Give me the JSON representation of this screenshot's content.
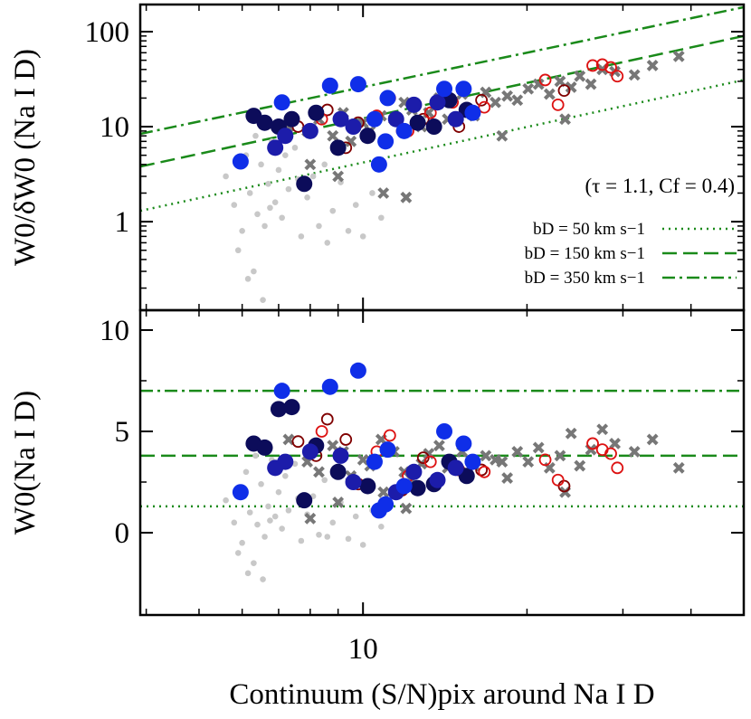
{
  "chart_data": [
    {
      "type": "scatter",
      "ylabel": "W0/δW0 (Na I D)",
      "annotation": "(τ = 1.1, Cf = 0.4)",
      "xscale": "log",
      "yscale": "log",
      "xlim": [
        3.9,
        50
      ],
      "ylim": [
        0.117,
        193
      ],
      "xticks": [
        10
      ],
      "yticks": [
        1,
        10,
        100
      ],
      "legend": "lower right",
      "series": [
        {
          "kind": "line",
          "name": "bD = 50 km s−1",
          "dash": "dotted",
          "color": "#1a8a1a",
          "x": [
            3.9,
            50
          ],
          "values": [
            1.3,
            31
          ]
        },
        {
          "kind": "line",
          "name": "bD = 150 km s−1",
          "dash": "dashed",
          "color": "#1a8a1a",
          "x": [
            3.9,
            50
          ],
          "values": [
            3.8,
            90
          ]
        },
        {
          "kind": "line",
          "name": "bD = 350 km s−1",
          "dash": "dashdot",
          "color": "#1a8a1a",
          "x": [
            3.9,
            50
          ],
          "values": [
            8.4,
            181
          ]
        },
        {
          "kind": "dot",
          "color": "#c8c8c8",
          "x": [
            5.6,
            5.8,
            6.0,
            6.1,
            6.2,
            6.3,
            6.4,
            6.5,
            6.6,
            6.7,
            6.8,
            6.9,
            7.0,
            7.1,
            7.3,
            7.5,
            7.7,
            7.9,
            8.1,
            8.3,
            8.5,
            8.8,
            9.1,
            9.4,
            9.7,
            10.0,
            10.4,
            10.8,
            5.9,
            6.15,
            6.35,
            6.55,
            6.75,
            7.2,
            7.6,
            8.6
          ],
          "values": [
            3,
            1.5,
            0.8,
            5,
            2,
            0.3,
            1.2,
            4,
            0.9,
            2.5,
            7,
            1.6,
            3.5,
            1.1,
            2.2,
            6,
            0.7,
            1.8,
            3,
            0.9,
            4,
            1.3,
            2.6,
            0.8,
            1.5,
            0.7,
            2,
            1.1,
            0.5,
            0.25,
            8,
            0.15,
            1.4,
            5,
            2.8,
            0.6
          ]
        },
        {
          "kind": "cross",
          "color": "#777777",
          "x": [
            7.3,
            7.9,
            8.3,
            8.8,
            9.2,
            9.5,
            10.0,
            10.3,
            10.8,
            11.4,
            11.9,
            12.3,
            12.8,
            13.2,
            13.8,
            14.3,
            15.2,
            16.0,
            16.8,
            17.5,
            18.4,
            19.2,
            20.1,
            21.0,
            22.0,
            23.0,
            24.1,
            25.0,
            26.2,
            27.5,
            29.0,
            31.5,
            34,
            38,
            8.0,
            9.0,
            10.9,
            12.0,
            18.0,
            23.5
          ],
          "values": [
            10,
            9,
            12,
            8,
            14,
            7,
            11,
            9,
            13,
            12,
            18,
            15,
            10,
            14,
            20,
            12,
            22,
            13,
            23,
            18,
            21,
            19,
            25,
            28,
            22,
            30,
            26,
            34,
            28,
            40,
            38,
            35,
            44,
            55,
            4,
            3,
            2,
            1.8,
            8,
            12
          ]
        },
        {
          "kind": "open",
          "color": "#800000",
          "x": [
            7.6,
            8.2,
            8.6,
            9.3,
            9.8,
            11.8,
            12.9,
            15.0,
            16.5,
            23.4
          ],
          "values": [
            10,
            14,
            15,
            6,
            11,
            9,
            12,
            10,
            19,
            24
          ]
        },
        {
          "kind": "open",
          "color": "#dd1111",
          "x": [
            8.4,
            11.2,
            13.3,
            14.6,
            16.7,
            21.6,
            22.8,
            26.4,
            27.5,
            28.5,
            29.3,
            10.6,
            12.1
          ],
          "values": [
            12,
            20,
            14,
            18,
            16,
            31,
            17,
            44,
            45,
            42,
            34,
            13,
            9
          ]
        },
        {
          "kind": "circle",
          "color": "#0c0c5a",
          "x": [
            6.3,
            6.6,
            7.0,
            7.4,
            7.8,
            8.2,
            9.0,
            10.2,
            12.6,
            13.5,
            14.4,
            15.5
          ],
          "values": [
            13,
            11,
            10,
            12,
            2.5,
            14,
            6,
            8,
            11,
            10,
            19,
            15
          ]
        },
        {
          "kind": "circle",
          "color": "#1c1caa",
          "x": [
            6.9,
            7.2,
            8.0,
            9.1,
            9.6,
            11.5,
            12.4,
            13.7,
            14.8
          ],
          "values": [
            6,
            8,
            9,
            12,
            10,
            12,
            17,
            18,
            12
          ]
        },
        {
          "kind": "circle",
          "color": "#0f2ee8",
          "x": [
            5.96,
            7.1,
            8.7,
            9.8,
            10.7,
            11.1,
            11.9,
            14.1,
            15.3,
            15.9,
            11.0,
            10.5
          ],
          "values": [
            4.3,
            18,
            27,
            28,
            4,
            20,
            9,
            25,
            25,
            14,
            7,
            12
          ]
        }
      ]
    },
    {
      "type": "scatter",
      "ylabel": "W0(Na I D)",
      "xlabel": "Continuum (S/N)pix around Na I D",
      "xscale": "log",
      "xlim": [
        3.9,
        50
      ],
      "ylim": [
        -4.06,
        10.98
      ],
      "xticks": [
        10
      ],
      "yticks": [
        0,
        5,
        10
      ],
      "series": [
        {
          "kind": "line",
          "dash": "dotted",
          "color": "#1a8a1a",
          "x": [
            3.9,
            50
          ],
          "values": [
            1.3,
            1.3
          ]
        },
        {
          "kind": "line",
          "dash": "dashed",
          "color": "#1a8a1a",
          "x": [
            3.9,
            50
          ],
          "values": [
            3.8,
            3.8
          ]
        },
        {
          "kind": "line",
          "dash": "dashdot",
          "color": "#1a8a1a",
          "x": [
            3.9,
            50
          ],
          "values": [
            7.0,
            7.0
          ]
        },
        {
          "kind": "dot",
          "color": "#c8c8c8",
          "x": [
            5.6,
            5.8,
            6.0,
            6.1,
            6.2,
            6.3,
            6.4,
            6.5,
            6.6,
            6.7,
            6.8,
            6.9,
            7.0,
            7.1,
            7.3,
            7.5,
            7.7,
            7.9,
            8.1,
            8.3,
            8.5,
            8.8,
            9.1,
            9.4,
            9.7,
            10.0,
            10.4,
            10.8,
            5.9,
            6.15,
            6.35,
            6.55,
            6.75,
            7.2,
            7.6,
            8.6
          ],
          "values": [
            1.6,
            0.5,
            -0.5,
            3.0,
            1.0,
            -1.5,
            0.4,
            2.4,
            -0.2,
            1.3,
            3.6,
            0.8,
            2.0,
            0.2,
            1.1,
            3.4,
            -0.4,
            0.9,
            1.8,
            -0.1,
            2.6,
            0.5,
            1.5,
            -0.3,
            0.8,
            -0.6,
            1.1,
            0.3,
            -1.0,
            -2.0,
            3.8,
            -2.3,
            0.6,
            2.8,
            1.7,
            -0.2
          ]
        },
        {
          "kind": "cross",
          "color": "#777777",
          "x": [
            7.3,
            7.9,
            8.3,
            8.8,
            9.2,
            9.5,
            10.0,
            10.3,
            10.8,
            11.4,
            11.9,
            12.3,
            12.8,
            13.2,
            13.8,
            14.3,
            15.2,
            16.0,
            16.8,
            17.5,
            18.4,
            19.2,
            20.1,
            21.0,
            22.0,
            23.0,
            24.1,
            25.0,
            26.2,
            27.5,
            29.0,
            31.5,
            34,
            38,
            8.0,
            9.0,
            10.9,
            12.0,
            18.0,
            23.5
          ],
          "values": [
            4.6,
            3.5,
            3.0,
            4.3,
            4.0,
            2.8,
            3.6,
            3.3,
            4.6,
            4.0,
            3.0,
            2.6,
            3.4,
            3.9,
            4.3,
            3.2,
            4.0,
            3.3,
            3.8,
            3.6,
            2.7,
            4.0,
            3.5,
            4.2,
            3.2,
            3.8,
            4.9,
            3.3,
            4.1,
            5.1,
            4.4,
            4.0,
            4.6,
            3.2,
            0.7,
            1.5,
            2.0,
            1.2,
            3.5,
            2.0
          ]
        },
        {
          "kind": "open",
          "color": "#800000",
          "x": [
            7.6,
            8.2,
            8.6,
            9.3,
            9.8,
            11.8,
            12.9,
            15.0,
            16.5,
            23.4
          ],
          "values": [
            4.5,
            3.8,
            5.6,
            4.6,
            2.4,
            2.1,
            3.7,
            3.1,
            3.1,
            2.3
          ]
        },
        {
          "kind": "open",
          "color": "#dd1111",
          "x": [
            8.4,
            11.2,
            13.3,
            14.6,
            16.7,
            21.6,
            22.8,
            26.4,
            27.5,
            28.5,
            29.3,
            10.6,
            12.1
          ],
          "values": [
            5.0,
            4.8,
            3.5,
            3.3,
            3.0,
            3.6,
            2.6,
            4.4,
            4.1,
            3.9,
            3.2,
            4.0,
            2.8
          ]
        },
        {
          "kind": "circle",
          "color": "#0c0c5a",
          "x": [
            6.3,
            6.6,
            7.0,
            7.4,
            7.8,
            8.2,
            9.0,
            10.2,
            12.6,
            13.5,
            14.4,
            15.5
          ],
          "values": [
            4.4,
            4.2,
            6.1,
            6.2,
            1.6,
            4.3,
            3.0,
            2.3,
            2.2,
            2.4,
            3.5,
            2.8
          ]
        },
        {
          "kind": "circle",
          "color": "#1c1caa",
          "x": [
            6.9,
            7.2,
            8.0,
            9.1,
            9.6,
            11.5,
            12.4,
            13.7,
            14.8
          ],
          "values": [
            3.2,
            3.5,
            4.0,
            3.8,
            2.5,
            2.0,
            3.0,
            2.6,
            3.2
          ]
        },
        {
          "kind": "circle",
          "color": "#0f2ee8",
          "x": [
            5.96,
            7.1,
            8.7,
            9.8,
            10.7,
            11.1,
            11.9,
            14.1,
            15.3,
            15.9,
            11.0,
            10.5
          ],
          "values": [
            2.0,
            7.0,
            7.2,
            8.0,
            1.1,
            4.1,
            2.3,
            5.0,
            4.4,
            3.5,
            1.4,
            3.5
          ]
        }
      ]
    }
  ]
}
